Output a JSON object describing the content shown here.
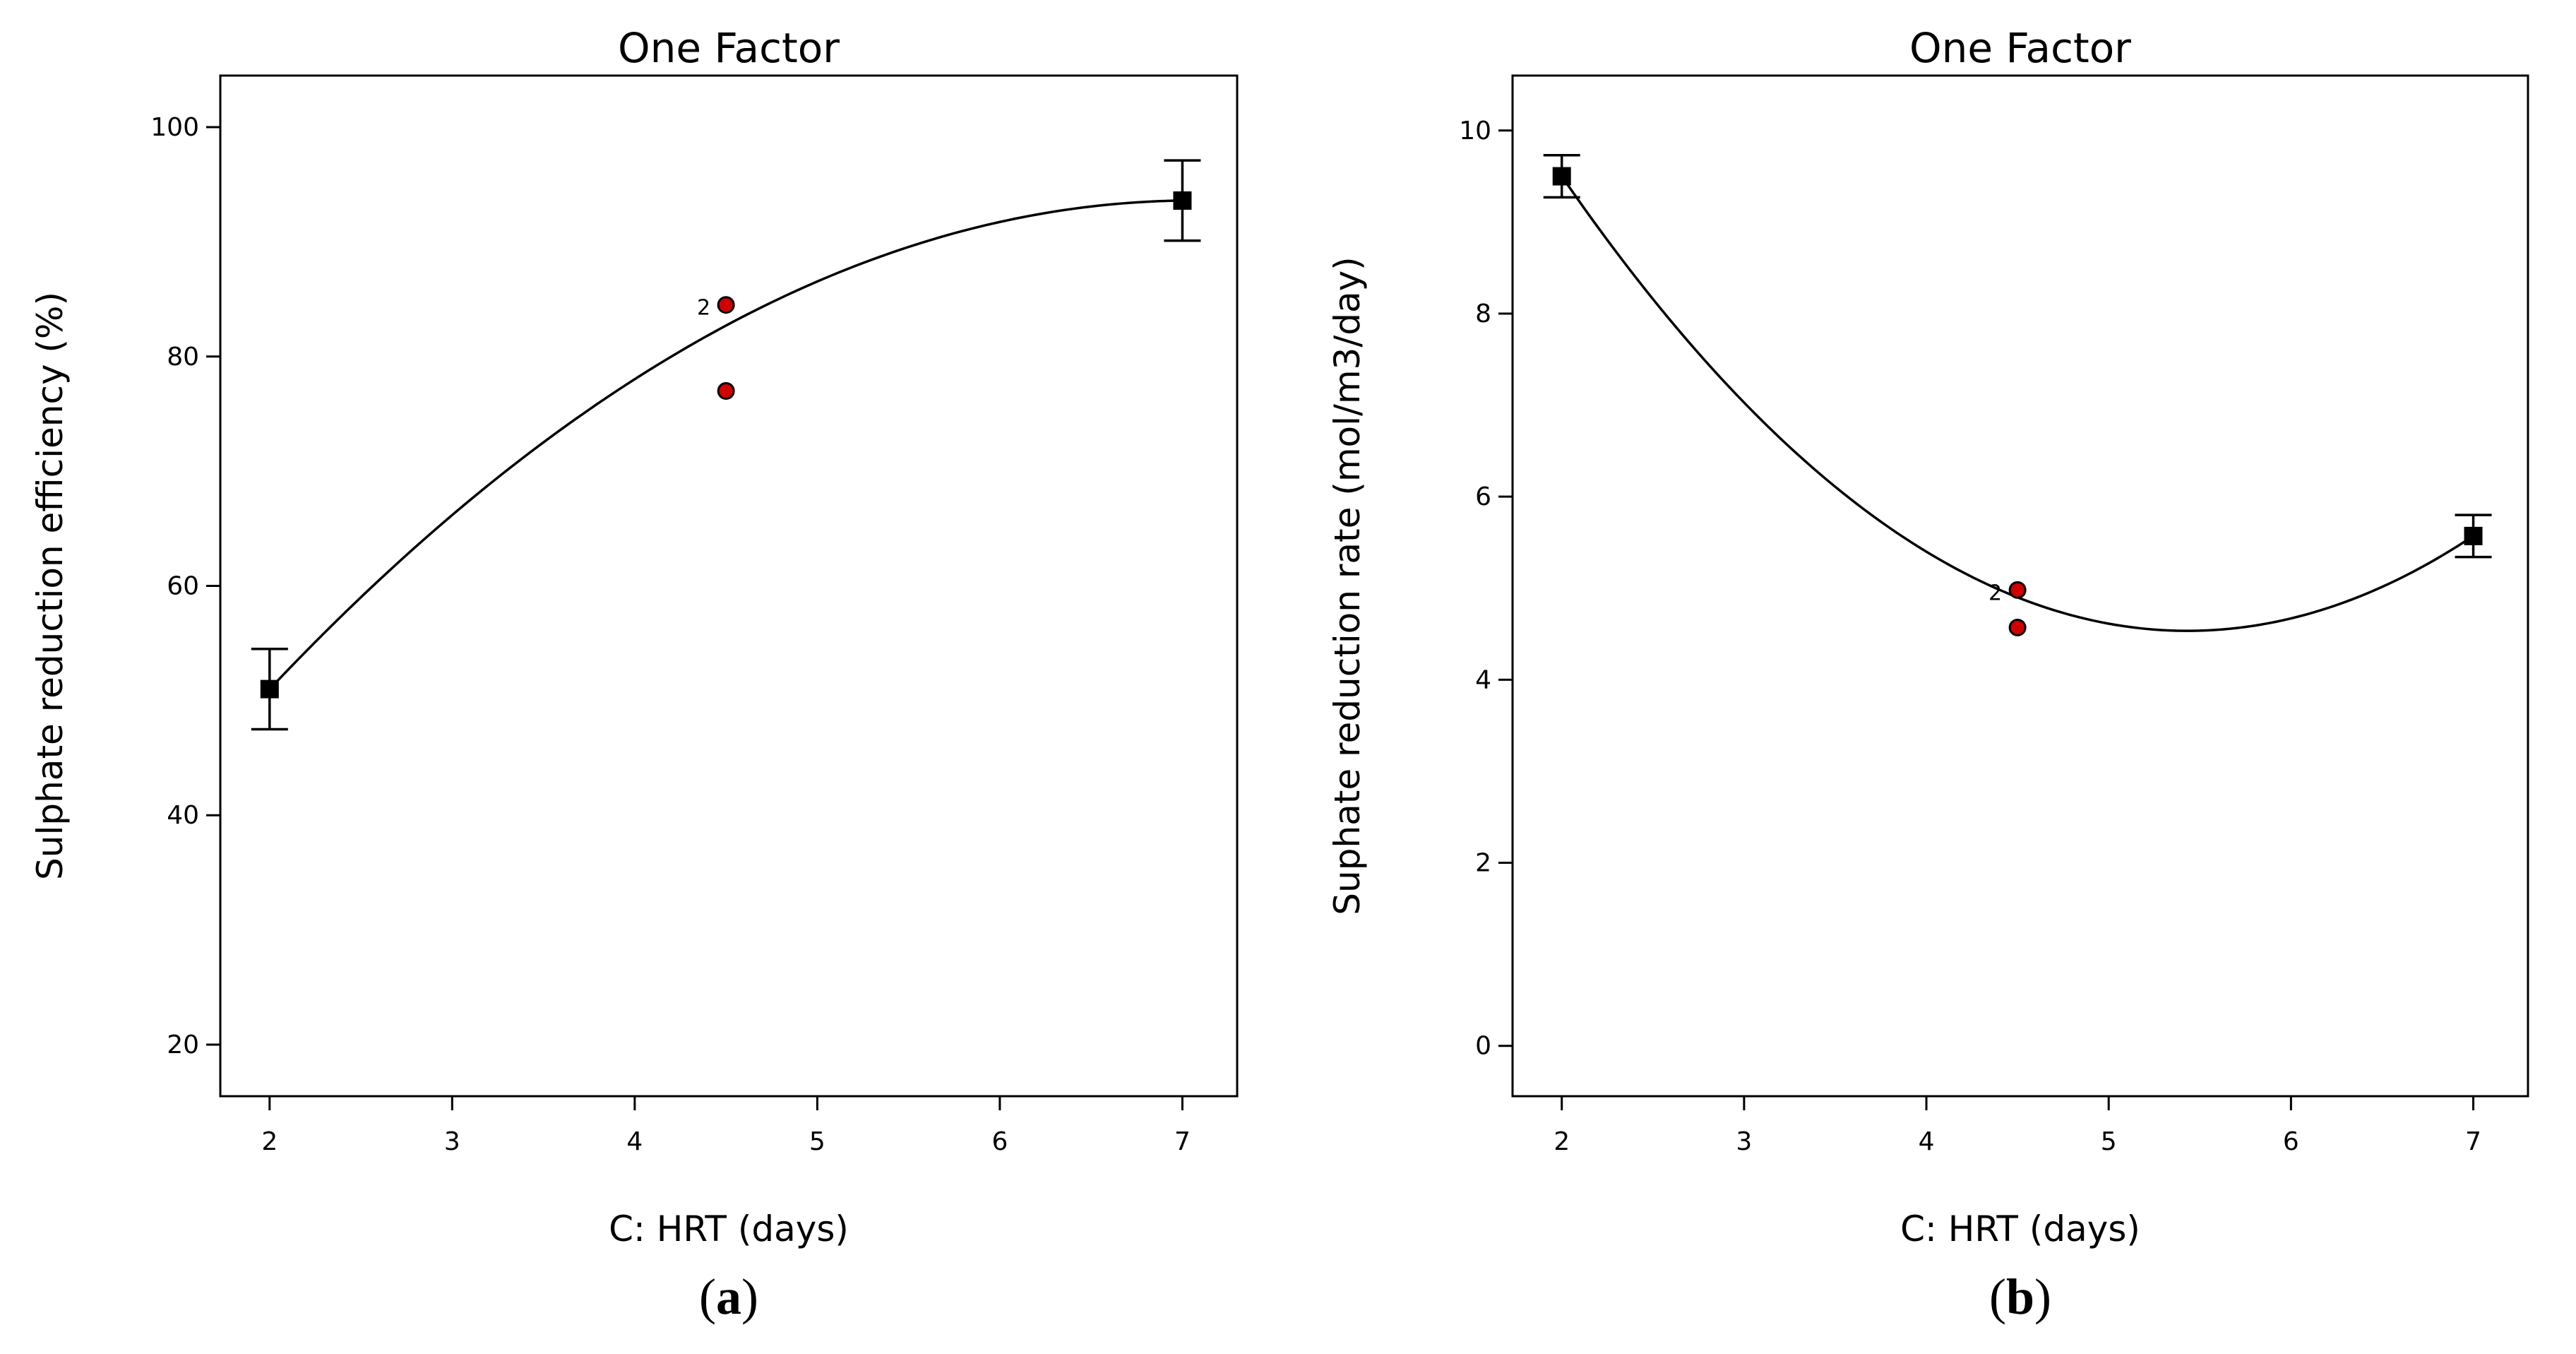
{
  "chart_data": [
    {
      "id": "a",
      "type": "scatter",
      "title": "One Factor",
      "xlabel": "C: HRT (days)",
      "ylabel": "Sulphate reduction efficiency (%)",
      "panel_label": "a",
      "xlim": [
        1.73,
        7.3
      ],
      "ylim": [
        15.5,
        104.5
      ],
      "xticks": [
        2,
        3,
        4,
        5,
        6,
        7
      ],
      "yticks": [
        20,
        40,
        60,
        80,
        100
      ],
      "fit_curve": {
        "x": [
          2,
          4.5,
          7
        ],
        "y": [
          51,
          82.7,
          93.6
        ]
      },
      "error_bars": [
        {
          "x": 2,
          "y": 51,
          "low": 47.5,
          "high": 54.5
        },
        {
          "x": 7,
          "y": 93.6,
          "low": 90.1,
          "high": 97.1
        }
      ],
      "design_points": [
        {
          "x": 2,
          "y": 51
        },
        {
          "x": 7,
          "y": 93.6
        }
      ],
      "actual_points": [
        {
          "x": 4.5,
          "y": 84.5,
          "count_label": "2"
        },
        {
          "x": 4.5,
          "y": 77,
          "count_label": ""
        }
      ]
    },
    {
      "id": "b",
      "type": "scatter",
      "title": "One Factor",
      "xlabel": "C: HRT (days)",
      "ylabel": "Suphate reduction rate (mol/m3/day)",
      "panel_label": "b",
      "xlim": [
        1.73,
        7.3
      ],
      "ylim": [
        -0.55,
        10.6
      ],
      "xticks": [
        2,
        3,
        4,
        5,
        6,
        7
      ],
      "yticks": [
        0,
        2,
        4,
        6,
        8,
        10
      ],
      "fit_curve": {
        "x": [
          2,
          4.5,
          7
        ],
        "y": [
          9.5,
          4.9,
          5.57
        ]
      },
      "error_bars": [
        {
          "x": 2,
          "y": 9.5,
          "low": 9.27,
          "high": 9.73
        },
        {
          "x": 7,
          "y": 5.57,
          "low": 5.34,
          "high": 5.8
        }
      ],
      "design_points": [
        {
          "x": 2,
          "y": 9.5
        },
        {
          "x": 7,
          "y": 5.57
        }
      ],
      "actual_points": [
        {
          "x": 4.5,
          "y": 4.98,
          "count_label": "2"
        },
        {
          "x": 4.5,
          "y": 4.57,
          "count_label": ""
        }
      ]
    }
  ]
}
